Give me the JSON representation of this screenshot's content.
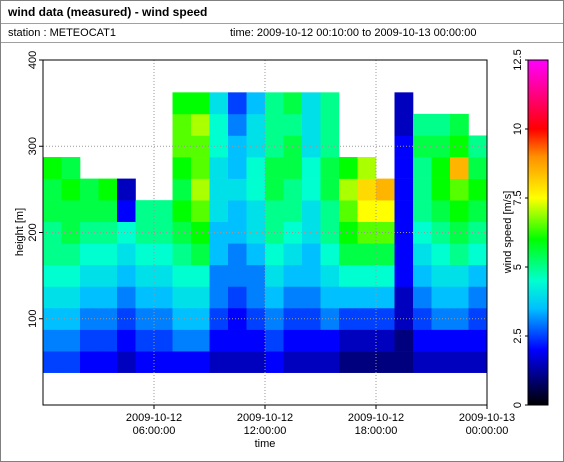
{
  "chart_data": {
    "type": "heatmap",
    "title": "wind data (measured) - wind speed",
    "station": "station : METEOCAT1",
    "period": "time: 2009-10-12 00:10:00 to 2009-10-13 00:00:00",
    "x_label": "time",
    "y_label": "height [m]",
    "colorbar_label": "wind speed [m/s]",
    "x": [
      "2009-10-12 00:30:00",
      "2009-10-12 01:30:00",
      "2009-10-12 02:30:00",
      "2009-10-12 03:30:00",
      "2009-10-12 04:30:00",
      "2009-10-12 05:30:00",
      "2009-10-12 06:30:00",
      "2009-10-12 07:30:00",
      "2009-10-12 08:30:00",
      "2009-10-12 09:30:00",
      "2009-10-12 10:30:00",
      "2009-10-12 11:30:00",
      "2009-10-12 12:30:00",
      "2009-10-12 13:30:00",
      "2009-10-12 14:30:00",
      "2009-10-12 15:30:00",
      "2009-10-12 16:30:00",
      "2009-10-12 17:30:00",
      "2009-10-12 18:30:00",
      "2009-10-12 19:30:00",
      "2009-10-12 20:30:00",
      "2009-10-12 21:30:00",
      "2009-10-12 22:30:00",
      "2009-10-12 23:30:00"
    ],
    "y": [
      50,
      75,
      100,
      125,
      150,
      175,
      200,
      225,
      250,
      275,
      300,
      325,
      350
    ],
    "z": [
      [
        2.5,
        2.5,
        2,
        2,
        1.5,
        2,
        2,
        2,
        2,
        1.5,
        1.5,
        1.5,
        2,
        1.5,
        1.5,
        1.5,
        1,
        1,
        1,
        1,
        1.5,
        1.5,
        1.5,
        1.5
      ],
      [
        3,
        3,
        2.5,
        2.5,
        2,
        2.5,
        2.5,
        3,
        3,
        2,
        2,
        2,
        2.5,
        2,
        2,
        2,
        1.5,
        1.5,
        1.5,
        1,
        2,
        2,
        2,
        2
      ],
      [
        3.5,
        3.5,
        3,
        3,
        2.5,
        3,
        3,
        3.5,
        3.5,
        2.5,
        2,
        2.5,
        3,
        2.5,
        2.5,
        3,
        2.5,
        2.5,
        2.5,
        1.5,
        2.5,
        3,
        3,
        2.5
      ],
      [
        4,
        4,
        3.5,
        3.5,
        3,
        3.5,
        3.5,
        4,
        4,
        3,
        2.5,
        3,
        3.5,
        3,
        3,
        3.5,
        3.5,
        3.5,
        3.5,
        1.5,
        3,
        3.5,
        3.5,
        3
      ],
      [
        4.5,
        4.5,
        4,
        4,
        3.5,
        4,
        4,
        4.5,
        4.5,
        3,
        3,
        3,
        4,
        3.5,
        3.5,
        4,
        4.5,
        4.5,
        4.5,
        2,
        3.5,
        4,
        4,
        3.5
      ],
      [
        5,
        5,
        4.5,
        4.5,
        4,
        4.5,
        4.5,
        5,
        5.5,
        3.5,
        3,
        3.5,
        4.5,
        4,
        3.5,
        4.5,
        5.5,
        5.5,
        5.5,
        2,
        4,
        4.5,
        5,
        4.5
      ],
      [
        5,
        5.5,
        5,
        5,
        4.5,
        5,
        5,
        5.5,
        6,
        3.5,
        3.5,
        4,
        5,
        4.5,
        4,
        5,
        6,
        6.5,
        6.5,
        2,
        4.5,
        5,
        5.5,
        5
      ],
      [
        5.5,
        5.5,
        5.5,
        5.5,
        2,
        5,
        5,
        6,
        6.5,
        4,
        3.5,
        4,
        5,
        5,
        4,
        5,
        6.5,
        7.5,
        7.5,
        2,
        5,
        5.5,
        6,
        5.5
      ],
      [
        5.5,
        6,
        5.5,
        6,
        1.5,
        null,
        null,
        5.5,
        7,
        4,
        4,
        4.5,
        5.5,
        5,
        4.5,
        5.5,
        7,
        8,
        8.5,
        2,
        5,
        6,
        6.5,
        6
      ],
      [
        6,
        5.5,
        null,
        null,
        null,
        null,
        null,
        6,
        6.5,
        4,
        3.5,
        4.5,
        5.5,
        5.5,
        4.5,
        5.5,
        6,
        7,
        null,
        2,
        5,
        6,
        8.5,
        5.5
      ],
      [
        null,
        null,
        null,
        null,
        null,
        null,
        null,
        6.5,
        6.5,
        4.5,
        3.5,
        4,
        5,
        5.5,
        4,
        5,
        null,
        null,
        null,
        2,
        5.5,
        5.5,
        6,
        5
      ],
      [
        null,
        null,
        null,
        null,
        null,
        null,
        null,
        6.5,
        7,
        4.5,
        3,
        4,
        5,
        5,
        4,
        5,
        null,
        null,
        null,
        1.5,
        5,
        5,
        5.5,
        null
      ],
      [
        null,
        null,
        null,
        null,
        null,
        null,
        null,
        6,
        6,
        4,
        2.5,
        3.5,
        5,
        5.5,
        4,
        5,
        null,
        null,
        null,
        1.5,
        null,
        null,
        null,
        null
      ]
    ],
    "xlim": [
      "2009-10-12 00:00:00",
      "2009-10-13 00:00:00"
    ],
    "xticks": [
      {
        "value": "2009-10-12 06:00:00",
        "label": [
          "2009-10-12",
          "06:00:00"
        ]
      },
      {
        "value": "2009-10-12 12:00:00",
        "label": [
          "2009-10-12",
          "12:00:00"
        ]
      },
      {
        "value": "2009-10-12 18:00:00",
        "label": [
          "2009-10-12",
          "18:00:00"
        ]
      },
      {
        "value": "2009-10-13 00:00:00",
        "label": [
          "2009-10-13",
          "00:00:00"
        ]
      }
    ],
    "ylim": [
      0,
      400
    ],
    "yticks": [
      100,
      200,
      300,
      400
    ],
    "zlim": [
      0,
      12.5
    ],
    "zticks": [
      0,
      2.5,
      5,
      7.5,
      10,
      12.5
    ],
    "grid": true,
    "colorscale": [
      {
        "value": 0,
        "color": "#000000"
      },
      {
        "value": 1,
        "color": "#00007f"
      },
      {
        "value": 2,
        "color": "#0000ff"
      },
      {
        "value": 3.5,
        "color": "#00c0ff"
      },
      {
        "value": 4.5,
        "color": "#00ffd0"
      },
      {
        "value": 6,
        "color": "#00ff00"
      },
      {
        "value": 7.5,
        "color": "#ffff00"
      },
      {
        "value": 9,
        "color": "#ff9000"
      },
      {
        "value": 10,
        "color": "#ff0000"
      },
      {
        "value": 11.25,
        "color": "#ff0080"
      },
      {
        "value": 12.5,
        "color": "#ff00ff"
      }
    ]
  }
}
